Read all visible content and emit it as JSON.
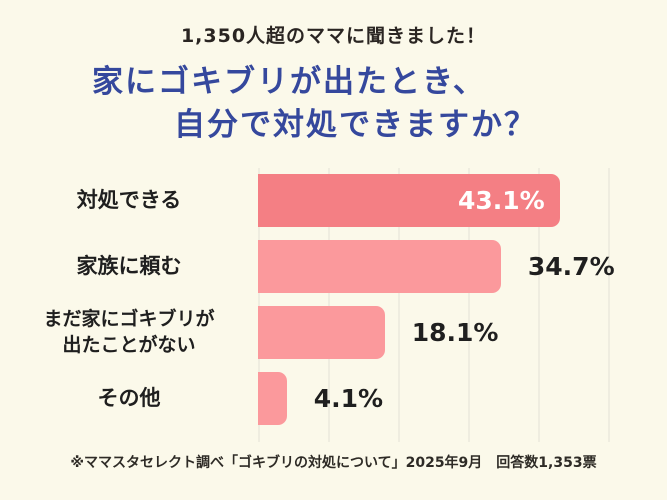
{
  "header": {
    "caption": "1,350人超のママに聞きました！",
    "title_line1": "家にゴキブリが出たとき、",
    "title_line2": "自分で対処できますか？"
  },
  "chart_data": {
    "type": "bar",
    "orientation": "horizontal",
    "title": "家にゴキブリが出たとき、自分で対処できますか？",
    "categories": [
      "対処できる",
      "家族に頼む",
      "まだ家にゴキブリが\n出たことがない",
      "その他"
    ],
    "values": [
      43.1,
      34.7,
      18.1,
      4.1
    ],
    "value_labels": [
      "43.1%",
      "34.7%",
      "18.1%",
      "4.1%"
    ],
    "value_label_position": [
      "inside",
      "outside",
      "outside",
      "outside"
    ],
    "bar_colors": [
      "#f47f84",
      "#fb999c",
      "#fb999c",
      "#fb999c"
    ],
    "xlim": [
      0,
      50
    ],
    "grid": true,
    "grid_interval": 10,
    "legend": "none"
  },
  "footer": {
    "note": "※ママスタセレクト調べ「ゴキブリの対処について」2025年9月　回答数1,353票"
  },
  "colors": {
    "background": "#fbf9ea",
    "title_text": "#35489d",
    "caption_text": "#2a2522",
    "bar_primary": "#f47f84",
    "bar_secondary": "#fb999c",
    "value_text": "#1f1f1f",
    "value_text_inside": "#ffffff",
    "gridline": "#efede0"
  }
}
